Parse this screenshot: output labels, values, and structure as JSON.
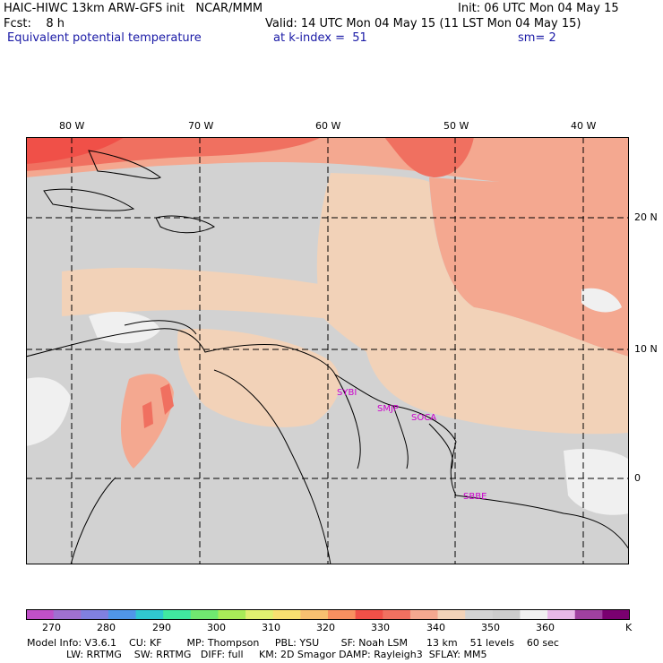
{
  "header": {
    "line1_left": "HAIC-HIWC 13km ARW-GFS init   NCAR/MMM",
    "line1_right": "Init: 06 UTC Mon 04 May 15",
    "line2_left": "Fcst:    8 h",
    "line2_right": "Valid: 14 UTC Mon 04 May 15 (11 LST Mon 04 May 15)",
    "line3_field": "Equivalent potential temperature",
    "line3_level": "at k-index =  51",
    "line3_smooth": "sm= 2"
  },
  "axes": {
    "lon_labels": [
      "80 W",
      "70 W",
      "60 W",
      "50 W",
      "40 W"
    ],
    "lat_labels": [
      "20 N",
      "10 N",
      "0"
    ]
  },
  "stations": [
    "SYBI",
    "SMJP",
    "SOCA",
    "SBBE"
  ],
  "colorbar": {
    "labels": [
      "270",
      "280",
      "290",
      "300",
      "310",
      "320",
      "330",
      "340",
      "350",
      "360",
      "K"
    ],
    "colors": [
      "#c050c8",
      "#a070d0",
      "#8080e0",
      "#5096e8",
      "#30c8d0",
      "#40e8a0",
      "#70e870",
      "#a8ec58",
      "#e0f070",
      "#f8e070",
      "#f8c070",
      "#f89060",
      "#f05048",
      "#f07060",
      "#f4a890",
      "#f2d2b8",
      "#d2d2d2",
      "#cccccc",
      "#f0f0f0",
      "#e8b8e8",
      "#a040a0",
      "#7a0070"
    ]
  },
  "model_info": {
    "line1": "Model Info: V3.6.1    CU: KF        MP: Thompson     PBL: YSU       SF: Noah LSM      13 km    51 levels    60 sec",
    "line2": "LW: RRTMG    SW: RRTMG   DIFF: full     KM: 2D Smagor DAMP: Rayleigh3  SFLAY: MM5"
  }
}
